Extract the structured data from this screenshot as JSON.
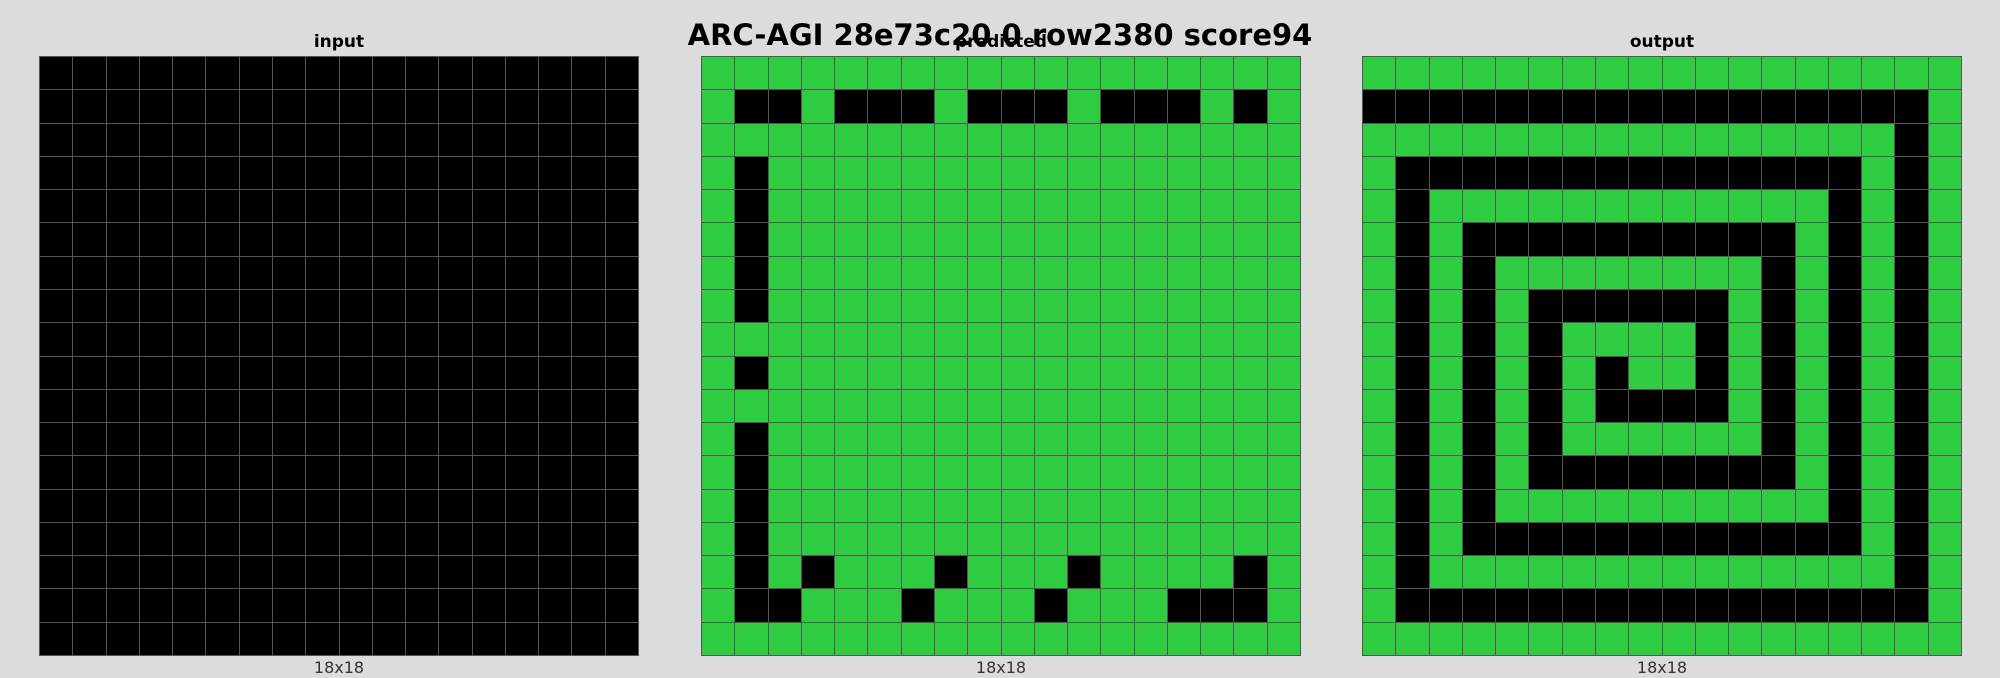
{
  "title": "ARC-AGI 28e73c20 0 row2380 score94",
  "colors": {
    "0": "#000000",
    "3": "#2ecc40",
    "background": "#dcdcdc"
  },
  "panels": [
    {
      "title": "input",
      "size": "18x18",
      "grid": [
        "000000000000000000",
        "000000000000000000",
        "000000000000000000",
        "000000000000000000",
        "000000000000000000",
        "000000000000000000",
        "000000000000000000",
        "000000000000000000",
        "000000000000000000",
        "000000000000000000",
        "000000000000000000",
        "000000000000000000",
        "000000000000000000",
        "000000000000000000",
        "000000000000000000",
        "000000000000000000",
        "000000000000000000",
        "000000000000000000"
      ]
    },
    {
      "title": "predicted",
      "size": "18x18",
      "grid": [
        "333333333333333333",
        "300300030003000303",
        "333333333333333333",
        "303333333333333333",
        "303333333333333333",
        "303333333333333333",
        "303333333333333333",
        "303333333333333333",
        "333333333333333333",
        "303333333333333333",
        "333333333333333333",
        "303333333333333333",
        "303333333333333333",
        "303333333333333333",
        "303333333333333333",
        "303033303330333303",
        "300333033303330003",
        "333333333333333333"
      ]
    },
    {
      "title": "output",
      "size": "18x18",
      "grid": [
        "333333333333333333",
        "000000000000000003",
        "333333333333333303",
        "300000000000000303",
        "303333333333330303",
        "303000000000030303",
        "303033333333030303",
        "303030000003030303",
        "303030333303030303",
        "303030303303030303",
        "303030300003030303",
        "303030333333030303",
        "303030000000030303",
        "303033333333330303",
        "303000000000000303",
        "303333333333333303",
        "300000000000000003",
        "333333333333333333"
      ]
    }
  ]
}
